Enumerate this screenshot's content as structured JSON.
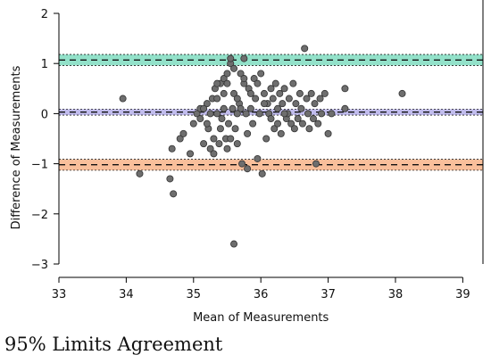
{
  "caption": "95% Limits Agreement",
  "chart_data": {
    "type": "scatter",
    "xlabel": "Mean of Measurements",
    "ylabel": "Difference of Measurements",
    "xlim": [
      33,
      39.3
    ],
    "ylim": [
      -3,
      2
    ],
    "xticks": [
      33,
      34,
      35,
      36,
      37,
      38,
      39
    ],
    "yticks": [
      -3,
      -2,
      -1,
      0,
      1,
      2
    ],
    "xtick_labels": [
      "33",
      "34",
      "35",
      "36",
      "37",
      "38",
      "39"
    ],
    "ytick_labels": [
      "−3",
      "−2",
      "−1",
      "0",
      "1",
      "2"
    ],
    "grid": false,
    "bands": [
      {
        "name": "upper limit",
        "center": 1.07,
        "low": 0.96,
        "high": 1.18,
        "color": "#7fdcbf"
      },
      {
        "name": "mean difference",
        "center": 0.03,
        "low": -0.03,
        "high": 0.09,
        "color": "#b6b0ea"
      },
      {
        "name": "lower limit",
        "center": -1.02,
        "low": -1.13,
        "high": -0.91,
        "color": "#f8b48a"
      }
    ],
    "points": [
      [
        33.95,
        0.3
      ],
      [
        34.2,
        -1.2
      ],
      [
        34.65,
        -1.3
      ],
      [
        34.7,
        -1.6
      ],
      [
        34.68,
        -0.7
      ],
      [
        34.8,
        -0.5
      ],
      [
        34.85,
        -0.4
      ],
      [
        34.95,
        -0.8
      ],
      [
        35.0,
        -0.2
      ],
      [
        35.05,
        0.0
      ],
      [
        35.1,
        0.1
      ],
      [
        35.15,
        -0.6
      ],
      [
        35.2,
        0.2
      ],
      [
        35.22,
        -0.3
      ],
      [
        35.25,
        -0.7
      ],
      [
        35.28,
        0.3
      ],
      [
        35.3,
        -0.5
      ],
      [
        35.32,
        0.5
      ],
      [
        35.35,
        0.0
      ],
      [
        35.38,
        -0.6
      ],
      [
        35.4,
        0.6
      ],
      [
        35.42,
        -0.1
      ],
      [
        35.45,
        0.7
      ],
      [
        35.48,
        -0.5
      ],
      [
        35.5,
        0.8
      ],
      [
        35.52,
        -0.2
      ],
      [
        35.55,
        1.0
      ],
      [
        35.58,
        0.1
      ],
      [
        35.6,
        0.4
      ],
      [
        35.62,
        -0.3
      ],
      [
        35.65,
        -0.6
      ],
      [
        35.68,
        0.2
      ],
      [
        35.7,
        0.8
      ],
      [
        35.72,
        -1.0
      ],
      [
        35.75,
        0.6
      ],
      [
        35.78,
        0.0
      ],
      [
        35.8,
        -0.4
      ],
      [
        35.82,
        0.5
      ],
      [
        35.85,
        0.1
      ],
      [
        35.88,
        -0.2
      ],
      [
        35.9,
        0.7
      ],
      [
        35.92,
        0.3
      ],
      [
        35.95,
        -0.9
      ],
      [
        35.98,
        0.0
      ],
      [
        36.0,
        0.8
      ],
      [
        36.02,
        -1.2
      ],
      [
        36.05,
        0.4
      ],
      [
        36.08,
        -0.5
      ],
      [
        36.1,
        0.2
      ],
      [
        36.12,
        0.0
      ],
      [
        36.15,
        -0.1
      ],
      [
        36.18,
        0.3
      ],
      [
        36.2,
        -0.3
      ],
      [
        36.22,
        0.6
      ],
      [
        36.25,
        0.1
      ],
      [
        36.28,
        0.4
      ],
      [
        36.3,
        -0.4
      ],
      [
        36.32,
        0.2
      ],
      [
        36.35,
        0.5
      ],
      [
        36.38,
        -0.1
      ],
      [
        36.4,
        0.0
      ],
      [
        36.42,
        0.3
      ],
      [
        36.45,
        -0.2
      ],
      [
        36.48,
        0.6
      ],
      [
        36.5,
        -0.3
      ],
      [
        36.52,
        0.2
      ],
      [
        36.55,
        -0.1
      ],
      [
        36.58,
        0.4
      ],
      [
        36.6,
        0.1
      ],
      [
        36.62,
        -0.2
      ],
      [
        36.65,
        1.3
      ],
      [
        36.68,
        0.3
      ],
      [
        36.7,
        0.0
      ],
      [
        36.72,
        -0.3
      ],
      [
        36.75,
        0.4
      ],
      [
        36.78,
        -0.1
      ],
      [
        36.8,
        0.2
      ],
      [
        36.82,
        -1.0
      ],
      [
        36.85,
        -0.2
      ],
      [
        36.88,
        0.3
      ],
      [
        36.9,
        0.0
      ],
      [
        36.95,
        0.4
      ],
      [
        37.0,
        -0.4
      ],
      [
        37.05,
        0.0
      ],
      [
        37.25,
        0.5
      ],
      [
        37.25,
        0.1
      ],
      [
        38.1,
        0.4
      ],
      [
        35.6,
        -2.6
      ],
      [
        35.3,
        -0.8
      ],
      [
        35.5,
        0.6
      ],
      [
        35.65,
        0.3
      ],
      [
        35.75,
        0.7
      ],
      [
        35.55,
        1.1
      ],
      [
        35.75,
        1.1
      ],
      [
        35.25,
        0.0
      ],
      [
        35.35,
        0.3
      ],
      [
        35.45,
        0.1
      ],
      [
        35.6,
        0.9
      ],
      [
        35.7,
        0.1
      ],
      [
        35.85,
        0.4
      ],
      [
        35.95,
        0.6
      ],
      [
        36.05,
        0.2
      ],
      [
        36.15,
        0.5
      ],
      [
        36.25,
        -0.2
      ],
      [
        36.35,
        0.0
      ],
      [
        35.2,
        -0.2
      ],
      [
        35.15,
        0.1
      ],
      [
        35.1,
        -0.1
      ],
      [
        35.4,
        -0.3
      ],
      [
        35.5,
        -0.7
      ],
      [
        35.55,
        -0.5
      ],
      [
        35.8,
        -1.1
      ],
      [
        35.65,
        0.0
      ],
      [
        35.45,
        0.4
      ],
      [
        35.35,
        0.6
      ]
    ]
  }
}
